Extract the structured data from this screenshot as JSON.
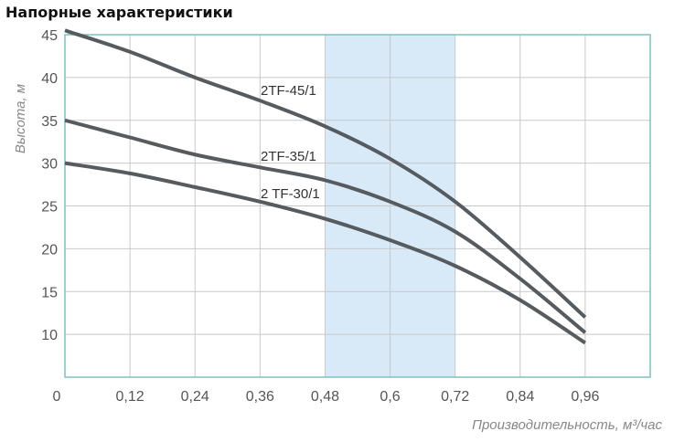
{
  "chart_data": {
    "type": "line",
    "title": "Напорные характеристики",
    "xlabel": "Производительность, м³/час",
    "ylabel": "Высота, м",
    "xlim": [
      0,
      1.08
    ],
    "ylim": [
      5,
      45
    ],
    "x_ticks": [
      "0",
      "0,12",
      "0,24",
      "0,36",
      "0,48",
      "0,6",
      "0,72",
      "0,84",
      "0,96"
    ],
    "y_ticks": [
      "45",
      "40",
      "35",
      "30",
      "25",
      "20",
      "15",
      "10"
    ],
    "grid": true,
    "highlight_range": [
      0.48,
      0.72
    ],
    "colors": {
      "line": "#565b60",
      "highlight": "#d8eaf7",
      "axis": "#7fc0c0",
      "grid": "#c8c8c8"
    },
    "x": [
      0,
      0.12,
      0.24,
      0.36,
      0.48,
      0.6,
      0.72,
      0.84,
      0.96
    ],
    "series": [
      {
        "name": "2TF-45/1",
        "values": [
          45.5,
          43,
          40,
          37.3,
          34.3,
          30.5,
          25.5,
          19,
          12
        ]
      },
      {
        "name": "2TF-35/1",
        "values": [
          35,
          33,
          31,
          29.5,
          28,
          25.5,
          22,
          16.5,
          10.2
        ]
      },
      {
        "name": "2 TF-30/1",
        "values": [
          30,
          28.8,
          27.2,
          25.5,
          23.5,
          21,
          18,
          14,
          9
        ]
      }
    ]
  }
}
